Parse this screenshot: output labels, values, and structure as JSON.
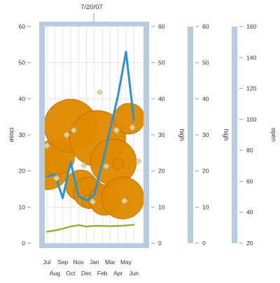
{
  "colors": {
    "axis_band": "#b9cbe0",
    "bubble": "#e08a00",
    "bubble_stroke": "#b56d00",
    "line_close": "#2b93d6",
    "line_volume": "#99b035",
    "marker": "#d6d2a8",
    "grid": "#e4e4e4"
  },
  "chart_data": {
    "type": "bubble",
    "crosshair_label": "7/20/07",
    "x_tick_labels_top_row": [
      "Jul",
      "Sep",
      "Nov",
      "Jan",
      "Mar",
      "May"
    ],
    "x_tick_labels_bottom_row": [
      "Aug",
      "Oct",
      "Dec",
      "Feb",
      "Apr",
      "Jun"
    ],
    "axes": [
      {
        "id": "close",
        "title": "close",
        "side": "left",
        "range": [
          0,
          60
        ],
        "ticks": [
          "0",
          "10",
          "20",
          "30",
          "40",
          "50",
          "60"
        ]
      },
      {
        "id": "high_inner",
        "title": "high",
        "side": "right",
        "range": [
          0,
          60
        ],
        "ticks": [
          "0",
          "10",
          "20",
          "30",
          "40",
          "50",
          "60"
        ]
      },
      {
        "id": "high_outer",
        "title": "high",
        "side": "right",
        "range": [
          0,
          60
        ],
        "ticks": [
          "0",
          "10",
          "20",
          "30",
          "40",
          "50",
          "60"
        ]
      },
      {
        "id": "open",
        "title": "open",
        "side": "right",
        "range": [
          20,
          170
        ],
        "ticks": [
          "20",
          "40",
          "60",
          "80",
          "100",
          "120",
          "140",
          "160"
        ]
      }
    ],
    "series": [
      {
        "kind": "bubble",
        "points": [
          {
            "x": 0.0,
            "y": 21.0,
            "r": 0.8
          },
          {
            "x": 1.2,
            "y": 24.0,
            "r": 0.65
          },
          {
            "x": 3.0,
            "y": 32.5,
            "r": 0.95
          },
          {
            "x": 4.3,
            "y": 16.0,
            "r": 0.55
          },
          {
            "x": 5.3,
            "y": 14.0,
            "r": 0.55
          },
          {
            "x": 5.3,
            "y": 11.5,
            "r": 0.25
          },
          {
            "x": 6.4,
            "y": 29.0,
            "r": 1.0
          },
          {
            "x": 7.3,
            "y": 12.0,
            "r": 0.55
          },
          {
            "x": 8.4,
            "y": 22.5,
            "r": 0.82
          },
          {
            "x": 9.0,
            "y": 22.0,
            "r": 0.2
          },
          {
            "x": 9.6,
            "y": 12.5,
            "r": 0.75
          },
          {
            "x": 10.4,
            "y": 34.5,
            "r": 0.55
          }
        ]
      },
      {
        "kind": "line",
        "axis": "close",
        "points": [
          {
            "x": 0,
            "y": 18.5
          },
          {
            "x": 1,
            "y": 19.0
          },
          {
            "x": 2,
            "y": 12.5
          },
          {
            "x": 3,
            "y": 22.5
          },
          {
            "x": 4,
            "y": 13.0
          },
          {
            "x": 5,
            "y": 11.8
          },
          {
            "x": 6,
            "y": 13.5
          },
          {
            "x": 7,
            "y": 22.0
          },
          {
            "x": 8,
            "y": 31.5
          },
          {
            "x": 9,
            "y": 41.0
          },
          {
            "x": 10,
            "y": 53.0
          },
          {
            "x": 11,
            "y": 34.0
          }
        ]
      },
      {
        "kind": "line",
        "axis": "close",
        "points": [
          {
            "x": 0,
            "y": 3.2
          },
          {
            "x": 1,
            "y": 3.5
          },
          {
            "x": 2,
            "y": 4.0
          },
          {
            "x": 3,
            "y": 4.6
          },
          {
            "x": 4,
            "y": 5.0
          },
          {
            "x": 5,
            "y": 4.6
          },
          {
            "x": 6,
            "y": 4.8
          },
          {
            "x": 7,
            "y": 4.8
          },
          {
            "x": 8,
            "y": 4.7
          },
          {
            "x": 9,
            "y": 4.8
          },
          {
            "x": 10,
            "y": 4.9
          },
          {
            "x": 11,
            "y": 5.1
          }
        ]
      },
      {
        "kind": "marker",
        "points": [
          {
            "x": 0.0,
            "y": 27.0
          },
          {
            "x": 1.2,
            "y": 18.0
          },
          {
            "x": 2.5,
            "y": 30.0
          },
          {
            "x": 3.4,
            "y": 31.3
          },
          {
            "x": 4.7,
            "y": 21.5
          },
          {
            "x": 5.8,
            "y": 11.5
          },
          {
            "x": 6.7,
            "y": 41.8
          },
          {
            "x": 7.5,
            "y": 21.3
          },
          {
            "x": 8.8,
            "y": 31.3
          },
          {
            "x": 9.8,
            "y": 11.7
          },
          {
            "x": 10.8,
            "y": 32.0
          },
          {
            "x": 11.6,
            "y": 22.7
          }
        ]
      }
    ]
  }
}
